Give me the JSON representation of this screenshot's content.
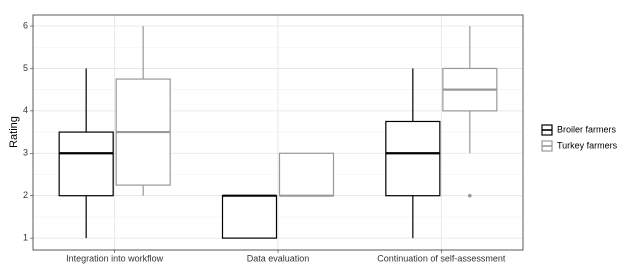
{
  "chart_data": {
    "type": "boxplot",
    "y_label": "Rating",
    "categories": [
      "Integration into workflow",
      "Data evaluation",
      "Continuation of self-assessment"
    ],
    "series": [
      {
        "name": "Broiler farmers",
        "color": "#000000",
        "values": [
          {
            "min": 1,
            "q1": 2,
            "median": 3,
            "q3": 3.5,
            "max": 5,
            "outliers": []
          },
          {
            "min": 1,
            "q1": 1,
            "median": 2,
            "q3": 2,
            "max": 2,
            "outliers": []
          },
          {
            "min": 1,
            "q1": 2,
            "median": 3,
            "q3": 3.75,
            "max": 5,
            "outliers": []
          }
        ]
      },
      {
        "name": "Turkey farmers",
        "color": "#999999",
        "values": [
          {
            "min": 2,
            "q1": 2.25,
            "median": 3.5,
            "q3": 4.75,
            "max": 6,
            "outliers": []
          },
          {
            "min": 2,
            "q1": 2,
            "median": 2,
            "q3": 3,
            "max": 3,
            "outliers": []
          },
          {
            "min": 3,
            "q1": 4,
            "median": 4.5,
            "q3": 5,
            "max": 6,
            "outliers": [
              2
            ]
          }
        ]
      }
    ],
    "ylim": [
      0.72,
      6.26
    ],
    "yticks": [
      1,
      2,
      3,
      4,
      5,
      6
    ],
    "grid": true,
    "legend": "right"
  }
}
